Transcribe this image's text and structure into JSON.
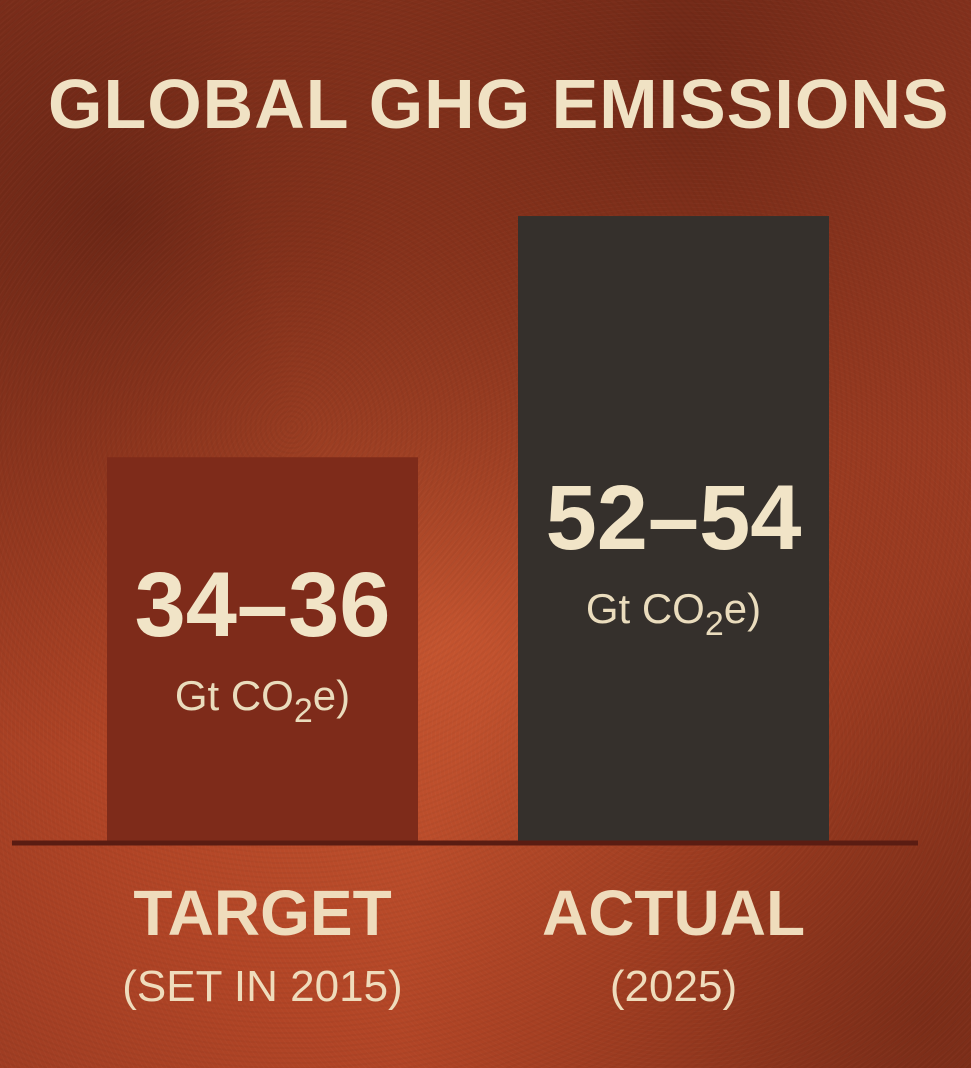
{
  "chart_data": {
    "type": "bar",
    "title": "GLOBAL GHG EMISSIONS",
    "categories": [
      "TARGET",
      "ACTUAL"
    ],
    "category_sublabels": [
      "(SET IN 2015)",
      "(2025)"
    ],
    "values": [
      35,
      53
    ],
    "value_labels": [
      "34–36",
      "52–54"
    ],
    "unit_parts": [
      "Gt CO",
      "2",
      "e)"
    ],
    "ylim": [
      0,
      56
    ],
    "grid": false,
    "colors": [
      "#7e2b1a",
      "#35302c"
    ]
  }
}
